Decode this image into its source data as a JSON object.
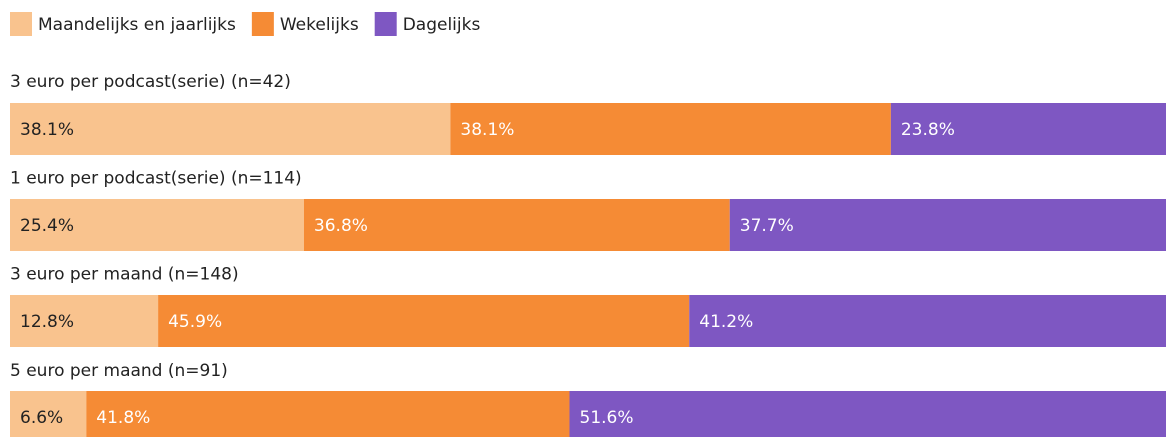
{
  "chart_data": {
    "type": "bar",
    "orientation": "horizontal",
    "stacked": true,
    "categories": [
      "3 euro per podcast(serie) (n=42)",
      "1 euro per podcast(serie) (n=114)",
      "3 euro per maand (n=148)",
      "5 euro per maand (n=91)"
    ],
    "series": [
      {
        "name": "Maandelijks en jaarlijks",
        "color": "#f9c38e",
        "values": [
          38.1,
          25.4,
          12.8,
          6.6
        ],
        "value_labels": [
          "38.1%",
          "25.4%",
          "12.8%",
          "6.6%"
        ]
      },
      {
        "name": "Wekelijks",
        "color": "#f58b35",
        "values": [
          38.1,
          36.8,
          45.9,
          41.8
        ],
        "value_labels": [
          "38.1%",
          "36.8%",
          "45.9%",
          "41.8%"
        ]
      },
      {
        "name": "Dagelijks",
        "color": "#7e57c2",
        "values": [
          23.8,
          37.7,
          41.2,
          51.6
        ],
        "value_labels": [
          "23.8%",
          "37.7%",
          "41.2%",
          "51.6%"
        ]
      }
    ],
    "legend": "top-left"
  }
}
